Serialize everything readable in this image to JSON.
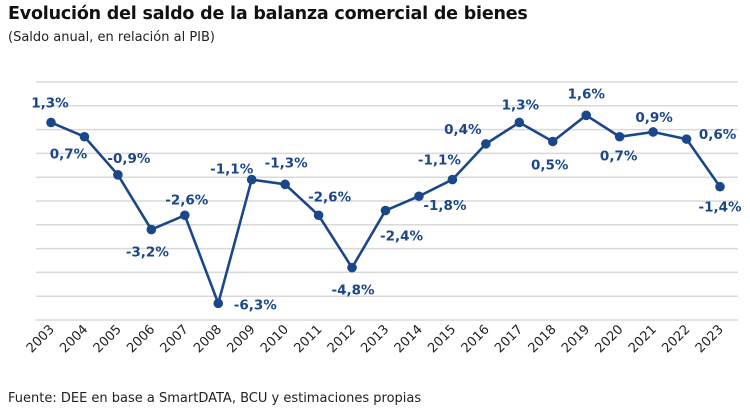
{
  "title": "Evolución del saldo de la balanza comercial de bienes",
  "subtitle": "(Saldo anual, en relación al PIB)",
  "source": "Fuente: DEE en base a SmartDATA, BCU y estimaciones propias",
  "colors": {
    "line": "#1a4789",
    "grid": "#d9d9d9",
    "label": "#1a4789"
  },
  "chart_data": {
    "type": "line",
    "title": "Evolución del saldo de la balanza comercial de bienes",
    "subtitle": "(Saldo anual, en relación al PIB)",
    "xlabel": "",
    "ylabel": "",
    "ylim": [
      -7,
      3
    ],
    "grid": true,
    "categories": [
      "2003",
      "2004",
      "2005",
      "2006",
      "2007",
      "2008",
      "2009",
      "2010",
      "2011",
      "2012",
      "2013",
      "2014",
      "2015",
      "2016",
      "2017",
      "2018",
      "2019",
      "2020",
      "2021",
      "2022",
      "2023"
    ],
    "values": [
      1.3,
      0.7,
      -0.9,
      -3.2,
      -2.6,
      -6.3,
      -1.1,
      -1.3,
      -2.6,
      -4.8,
      -2.4,
      -1.8,
      -1.1,
      0.4,
      1.3,
      0.5,
      1.6,
      0.7,
      0.9,
      0.6,
      -1.4
    ],
    "data_labels": [
      "1,3%",
      "0,7%",
      "-0,9%",
      "-3,2%",
      "-2,6%",
      "-6,3%",
      "-1,1%",
      "-1,3%",
      "-2,6%",
      "-4,8%",
      "-2,4%",
      "-1,8%",
      "-1,1%",
      "0,4%",
      "1,3%",
      "0,5%",
      "1,6%",
      "0,7%",
      "0,9%",
      "0,6%",
      "-1,4%"
    ]
  }
}
